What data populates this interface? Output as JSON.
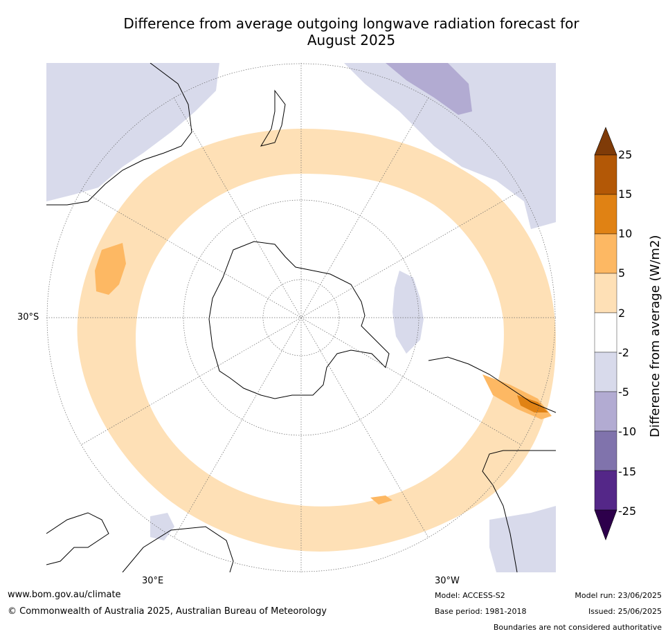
{
  "title_line1": "Difference from average outgoing longwave radiation forecast for",
  "title_line2": "August 2025",
  "map": {
    "projection": "south-polar-stereographic",
    "lat_label": "30°S",
    "lon_labels": [
      "30°E",
      "30°W"
    ]
  },
  "colorbar": {
    "label": "Difference from average (W/m2)",
    "ticks": [
      "25",
      "15",
      "10",
      "5",
      "2",
      "-2",
      "-5",
      "-10",
      "-15",
      "-25"
    ],
    "colors": {
      "over": "#7f3b08",
      "15_25": "#b35806",
      "10_15": "#e08214",
      "5_10": "#fdb863",
      "2_5": "#fee0b6",
      "neutral": "#ffffff",
      "m5_m2": "#d8daeb",
      "m10_m5": "#b2abd2",
      "m15_m10": "#8073ac",
      "m25_m15": "#542788",
      "under": "#2d004b"
    }
  },
  "footer": {
    "website": "www.bom.gov.au/climate",
    "copyright": "© Commonwealth of Australia 2025, Australian Bureau of Meteorology",
    "model": "Model: ACCESS-S2",
    "base_period": "Base period: 1981-2018",
    "model_run": "Model run: 23/06/2025",
    "issued": "Issued: 25/06/2025",
    "boundaries": "Boundaries are not considered authoritative"
  }
}
